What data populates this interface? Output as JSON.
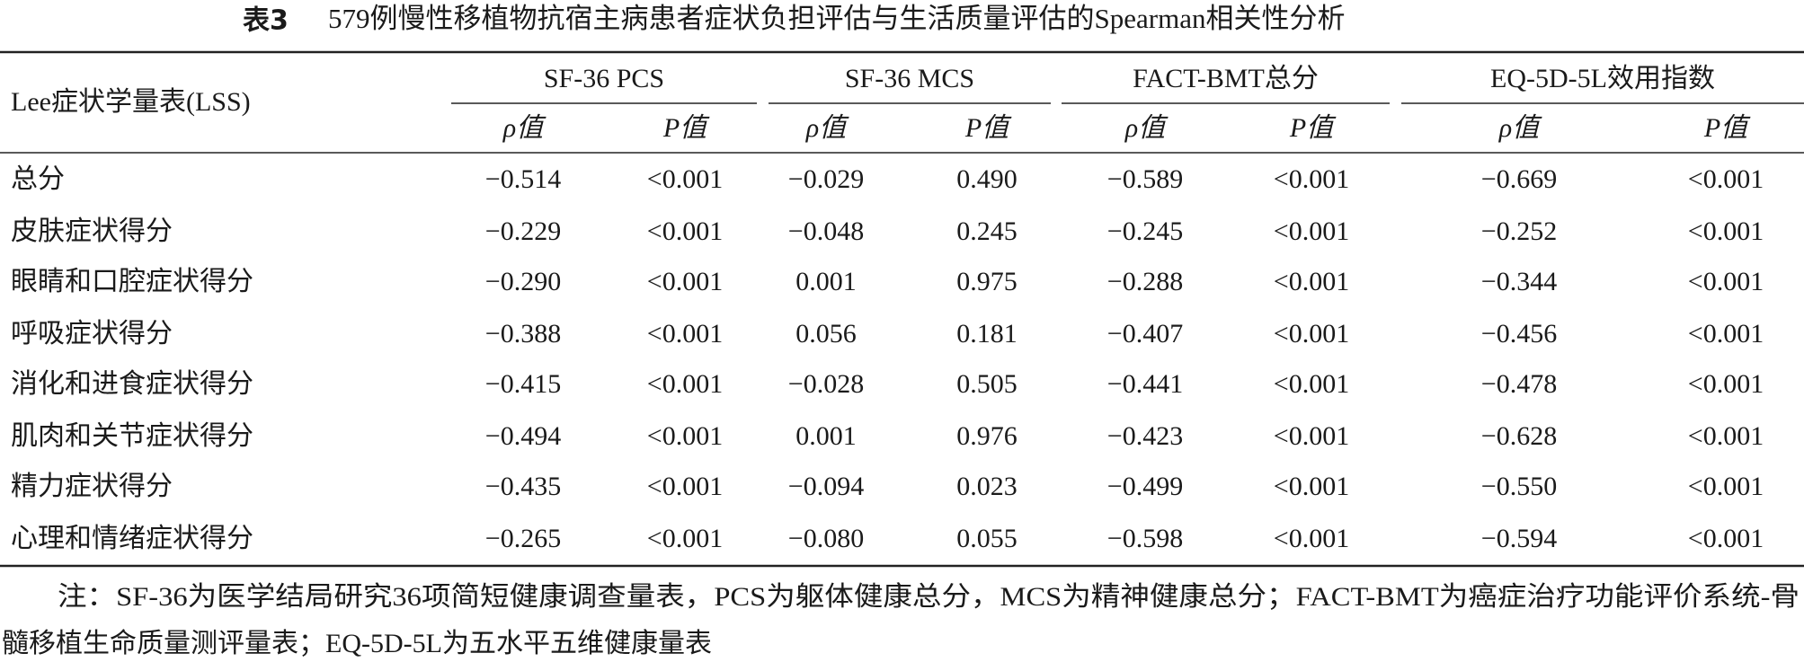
{
  "title": {
    "label": "表3",
    "text": "579例慢性移植物抗宿主病患者症状负担评估与生活质量评估的Spearman相关性分析"
  },
  "table": {
    "row_header": "Lee症状学量表(LSS)",
    "groups": [
      "SF-36 PCS",
      "SF-36 MCS",
      "FACT-BMT总分",
      "EQ-5D-5L效用指数"
    ],
    "subheaders": [
      "ρ值",
      "P值",
      "ρ值",
      "P值",
      "ρ值",
      "P值",
      "ρ值",
      "P值"
    ],
    "rows": [
      [
        "总分",
        "−0.514",
        "<0.001",
        "−0.029",
        "0.490",
        "−0.589",
        "<0.001",
        "−0.669",
        "<0.001"
      ],
      [
        "皮肤症状得分",
        "−0.229",
        "<0.001",
        "−0.048",
        "0.245",
        "−0.245",
        "<0.001",
        "−0.252",
        "<0.001"
      ],
      [
        "眼睛和口腔症状得分",
        "−0.290",
        "<0.001",
        "0.001",
        "0.975",
        "−0.288",
        "<0.001",
        "−0.344",
        "<0.001"
      ],
      [
        "呼吸症状得分",
        "−0.388",
        "<0.001",
        "0.056",
        "0.181",
        "−0.407",
        "<0.001",
        "−0.456",
        "<0.001"
      ],
      [
        "消化和进食症状得分",
        "−0.415",
        "<0.001",
        "−0.028",
        "0.505",
        "−0.441",
        "<0.001",
        "−0.478",
        "<0.001"
      ],
      [
        "肌肉和关节症状得分",
        "−0.494",
        "<0.001",
        "0.001",
        "0.976",
        "−0.423",
        "<0.001",
        "−0.628",
        "<0.001"
      ],
      [
        "精力症状得分",
        "−0.435",
        "<0.001",
        "−0.094",
        "0.023",
        "−0.499",
        "<0.001",
        "−0.550",
        "<0.001"
      ],
      [
        "心理和情绪症状得分",
        "−0.265",
        "<0.001",
        "−0.080",
        "0.055",
        "−0.598",
        "<0.001",
        "−0.594",
        "<0.001"
      ]
    ]
  },
  "note": [
    "注：SF-36为医学结局研究36项简短健康调查量表，PCS为躯体健康总分，MCS为精神健康总分；FACT-BMT为癌症治疗功能评价系统-骨",
    "髓移植生命质量测评量表；EQ-5D-5L为五水平五维健康量表"
  ]
}
